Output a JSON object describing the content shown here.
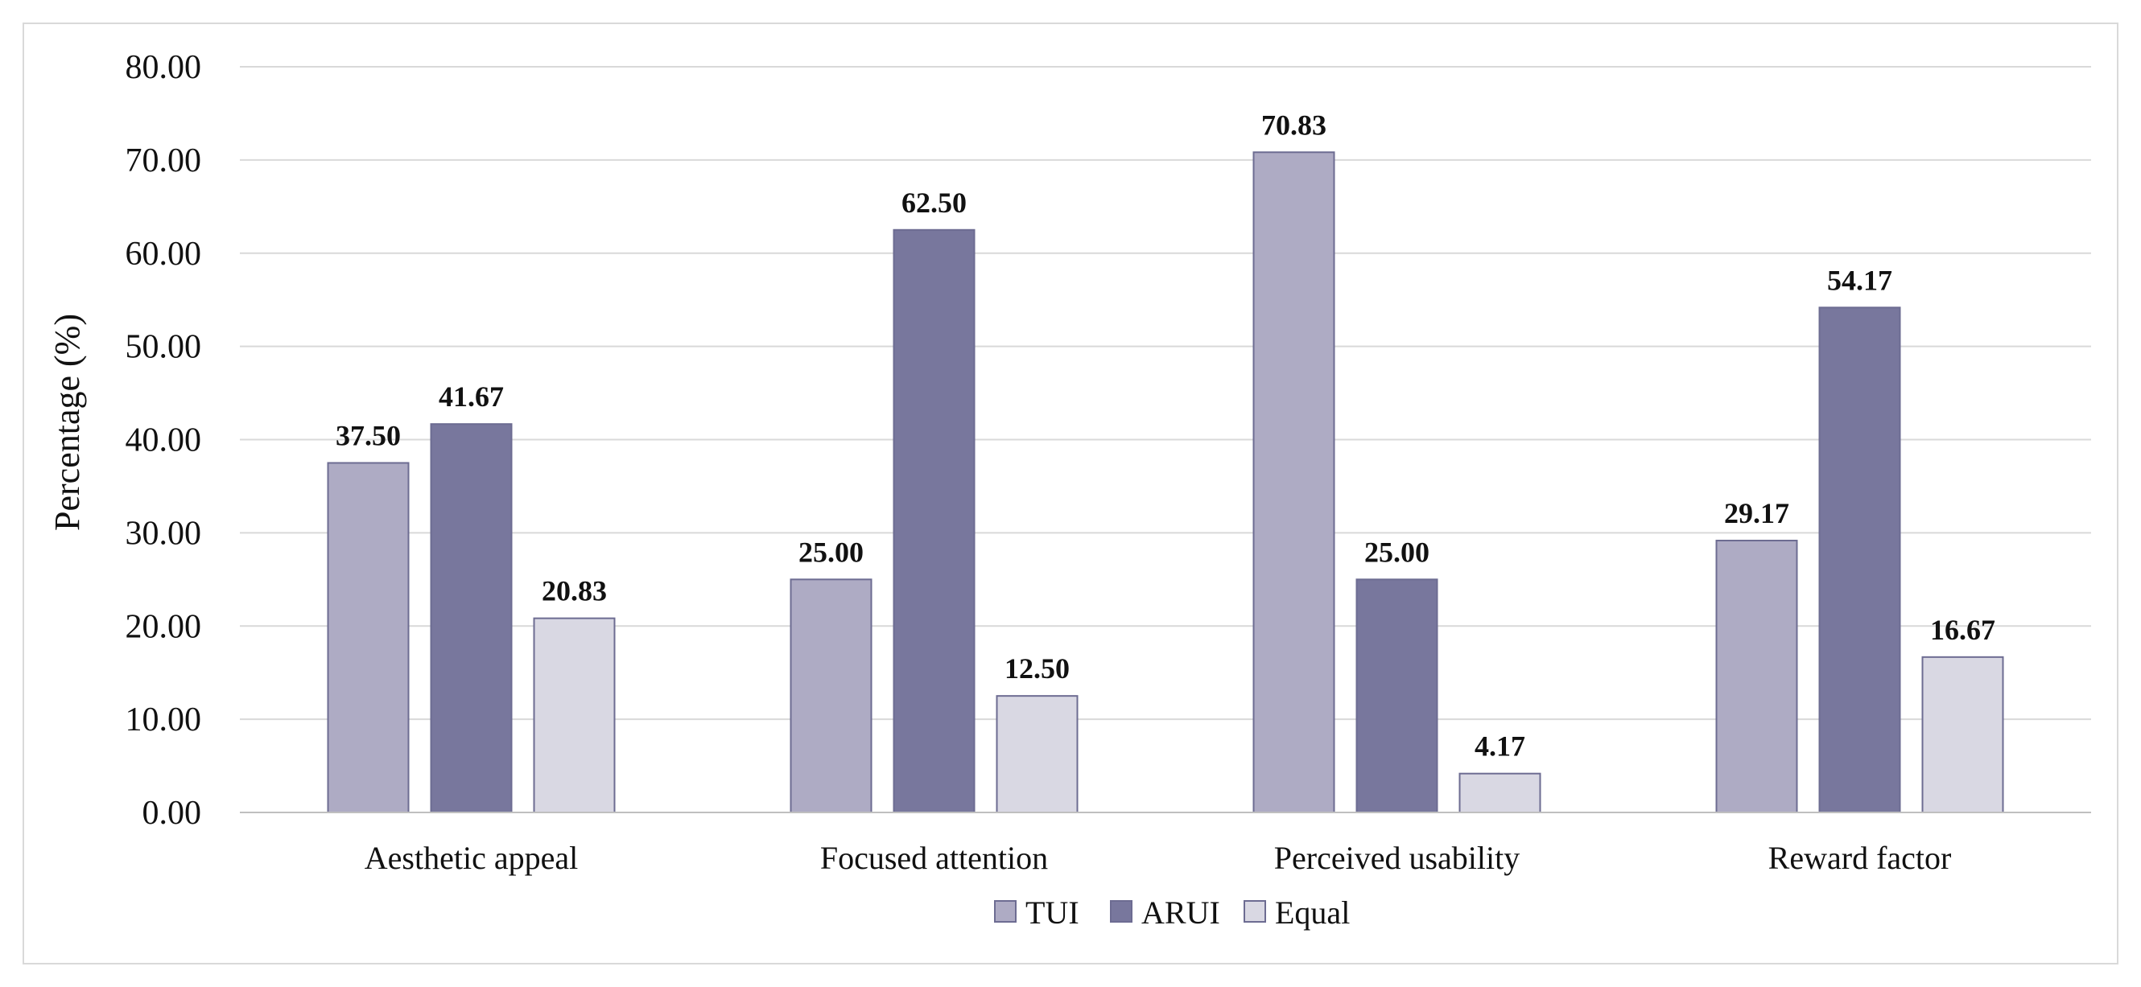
{
  "chart_data": {
    "type": "bar",
    "title": "",
    "xlabel": "",
    "ylabel": "Percentage (%)",
    "ylim": [
      0,
      80
    ],
    "yticks": [
      "0.00",
      "10.00",
      "20.00",
      "30.00",
      "40.00",
      "50.00",
      "60.00",
      "70.00",
      "80.00"
    ],
    "grid": true,
    "legend_position": "bottom",
    "categories": [
      "Aesthetic appeal",
      "Focused attention",
      "Perceived usability",
      "Reward factor"
    ],
    "series": [
      {
        "name": "TUI",
        "color": "#aeabc4",
        "values": [
          37.5,
          25.0,
          70.83,
          29.17
        ],
        "labels": [
          "37.50",
          "25.00",
          "70.83",
          "29.17"
        ]
      },
      {
        "name": "ARUI",
        "color": "#78779d",
        "values": [
          41.67,
          62.5,
          25.0,
          54.17
        ],
        "labels": [
          "41.67",
          "62.50",
          "25.00",
          "54.17"
        ]
      },
      {
        "name": "Equal",
        "color": "#d9d8e3",
        "values": [
          20.83,
          12.5,
          4.17,
          16.67
        ],
        "labels": [
          "20.83",
          "12.50",
          "4.17",
          "16.67"
        ]
      }
    ],
    "bar_outline_color": "#6d6c92",
    "grid_color": "#d9d9d9"
  }
}
